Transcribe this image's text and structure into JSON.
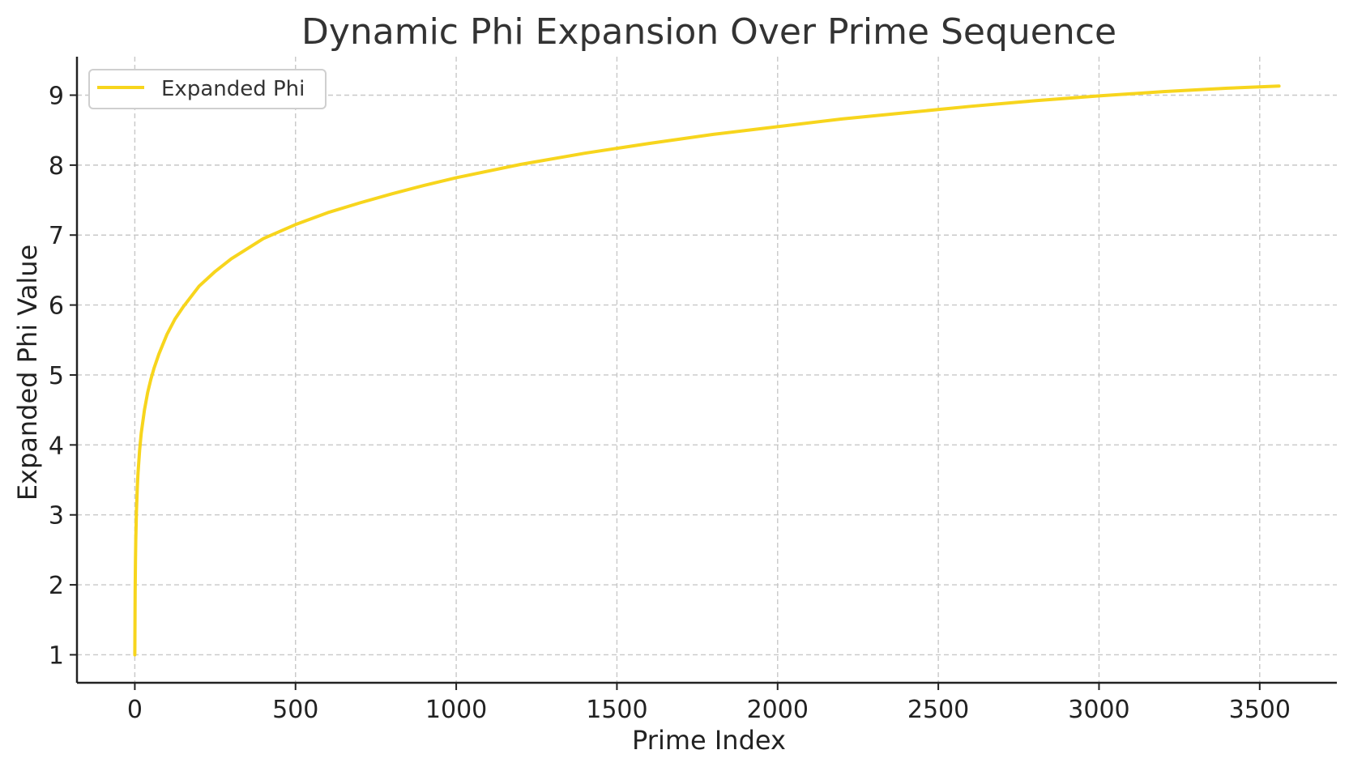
{
  "chart_data": {
    "type": "line",
    "title": "Dynamic Phi Expansion Over Prime Sequence",
    "xlabel": "Prime Index",
    "ylabel": "Expanded Phi Value",
    "xlim": [
      -180,
      3740
    ],
    "ylim": [
      0.6,
      9.55
    ],
    "xticks": [
      0,
      500,
      1000,
      1500,
      2000,
      2500,
      3000,
      3500
    ],
    "yticks": [
      1,
      2,
      3,
      4,
      5,
      6,
      7,
      8,
      9
    ],
    "grid": true,
    "legend_position": "top-left",
    "series": [
      {
        "name": "Expanded Phi",
        "color": "#f7d51d",
        "x": [
          0,
          1,
          2,
          3,
          5,
          8,
          10,
          15,
          20,
          30,
          40,
          50,
          60,
          75,
          100,
          125,
          150,
          200,
          250,
          300,
          400,
          500,
          600,
          700,
          800,
          900,
          1000,
          1200,
          1400,
          1600,
          1800,
          2000,
          2200,
          2400,
          2600,
          2800,
          3000,
          3200,
          3400,
          3560
        ],
        "y": [
          1.0,
          1.9,
          2.35,
          2.65,
          3.05,
          3.42,
          3.6,
          3.93,
          4.17,
          4.5,
          4.75,
          4.94,
          5.1,
          5.3,
          5.58,
          5.8,
          5.97,
          6.27,
          6.48,
          6.66,
          6.95,
          7.15,
          7.32,
          7.46,
          7.59,
          7.71,
          7.82,
          8.01,
          8.17,
          8.31,
          8.44,
          8.55,
          8.66,
          8.75,
          8.84,
          8.92,
          8.99,
          9.05,
          9.1,
          9.13
        ]
      }
    ]
  }
}
